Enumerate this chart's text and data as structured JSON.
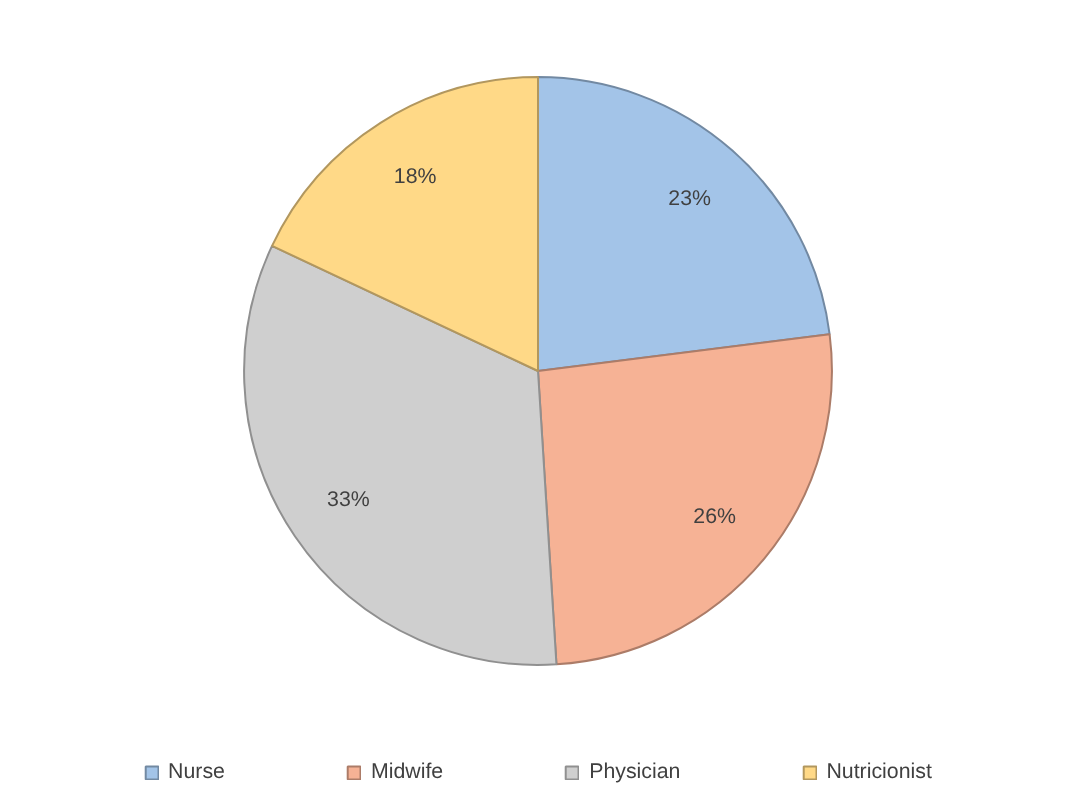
{
  "chart_data": {
    "type": "pie",
    "categories": [
      "Nurse",
      "Midwife",
      "Physician",
      "Nutricionist"
    ],
    "values": [
      23,
      26,
      33,
      18
    ],
    "colors": [
      "#a3c4e8",
      "#f6b295",
      "#cfcfcf",
      "#ffd987"
    ],
    "value_labels": [
      "23%",
      "26%",
      "33%",
      "18%"
    ],
    "legend": "bottom"
  }
}
